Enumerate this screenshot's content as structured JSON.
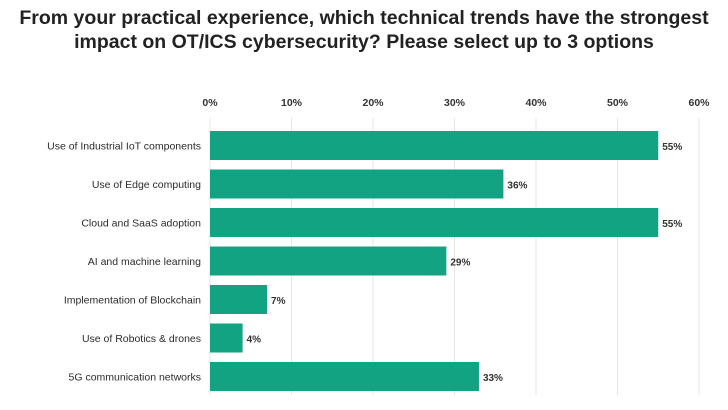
{
  "chart_data": {
    "type": "bar",
    "orientation": "horizontal",
    "title_lines": [
      "From your practical experience, which technical trends have the strongest",
      "impact on OT/ICS cybersecurity? Please select up to 3 options"
    ],
    "categories": [
      "Use of Industrial IoT components",
      "Use of Edge computing",
      "Cloud and SaaS adoption",
      "AI and machine learning",
      "Implementation of Blockchain",
      "Use of Robotics & drones",
      "5G communication networks"
    ],
    "values": [
      55,
      36,
      55,
      29,
      7,
      4,
      33
    ],
    "data_labels": [
      "55%",
      "36%",
      "55%",
      "29%",
      "7%",
      "4%",
      "33%"
    ],
    "x_ticks": [
      "0%",
      "10%",
      "20%",
      "30%",
      "40%",
      "50%",
      "60%"
    ],
    "xlim": [
      0,
      60
    ],
    "x_axis_position": "top",
    "grid": true,
    "bar_color": "#12a382",
    "grid_color": "#e6e6e6"
  }
}
